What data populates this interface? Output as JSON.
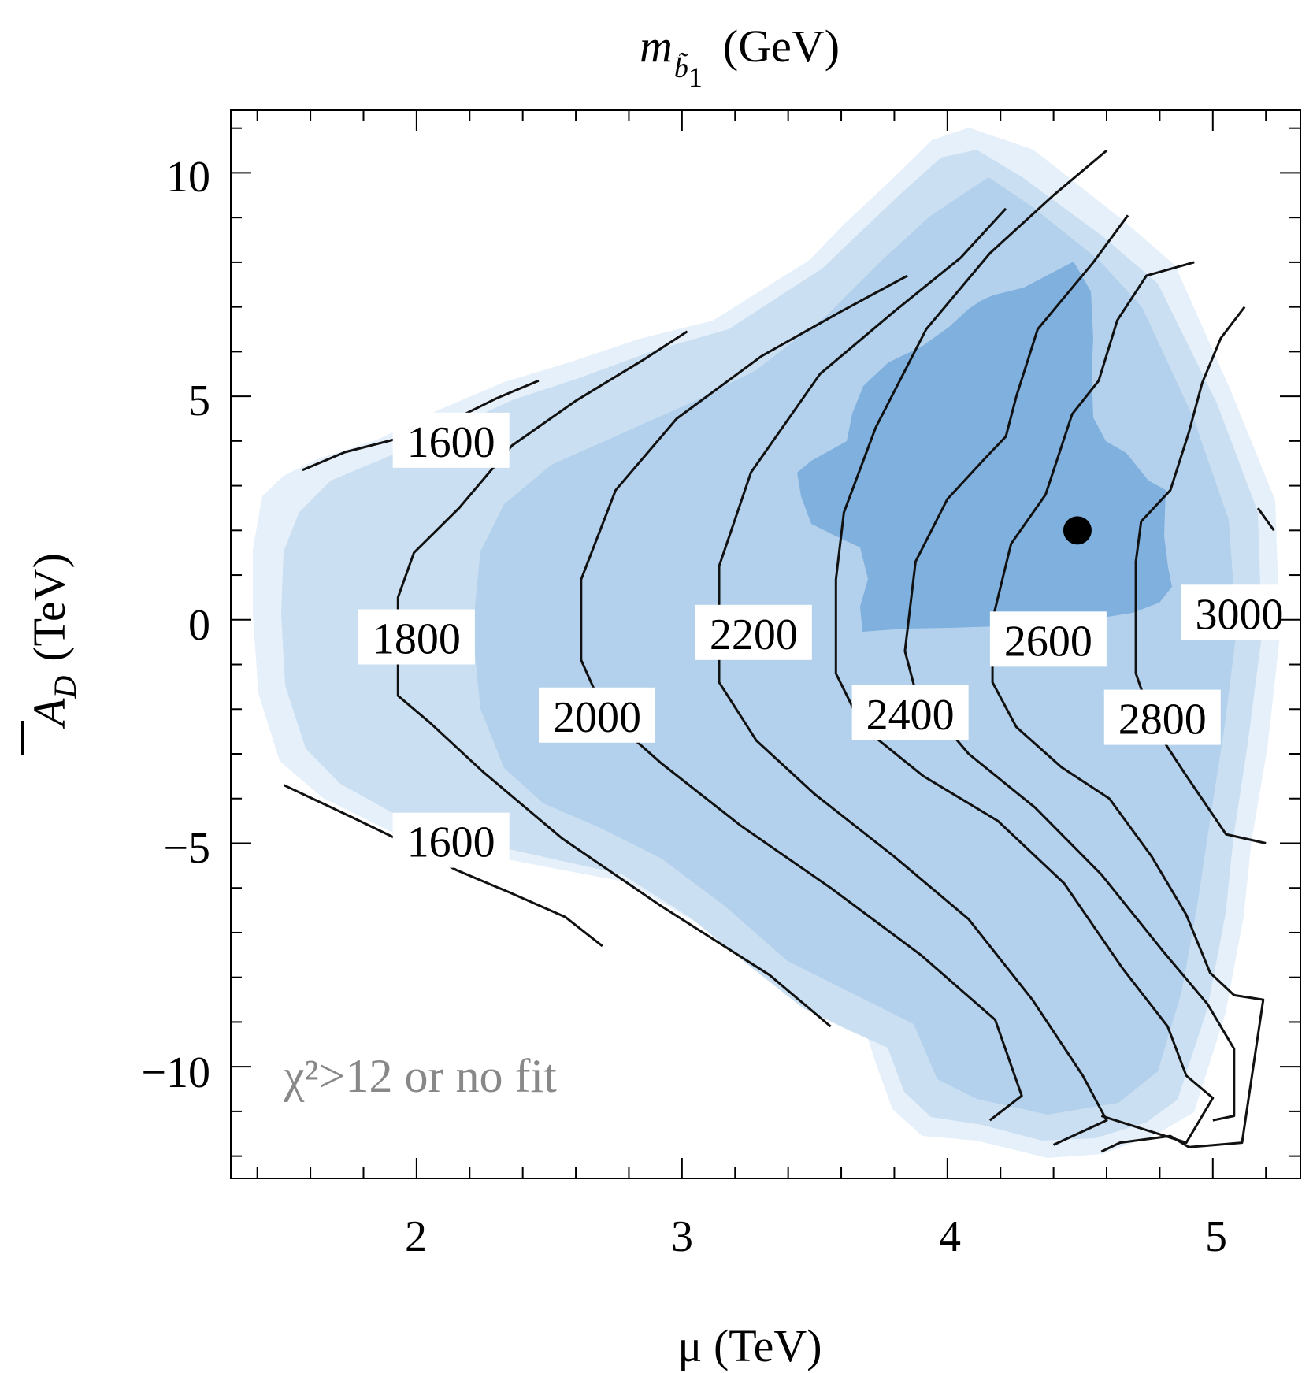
{
  "chart_data": {
    "type": "contour",
    "title": "m",
    "title_subscript": "b̃",
    "title_subscript_index": "1",
    "title_unit": "(GeV)",
    "xlabel": "μ (TeV)",
    "ylabel_symbol": "A",
    "ylabel_subscript": "D",
    "ylabel_unit": "(TeV)",
    "xlim": [
      1.3,
      5.33
    ],
    "ylim": [
      -12.5,
      11.4
    ],
    "xticks": [
      2,
      3,
      4,
      5
    ],
    "xtick_labels": [
      "2",
      "3",
      "4",
      "5"
    ],
    "yticks": [
      10,
      5,
      0,
      -5,
      -10
    ],
    "ytick_labels": [
      "10",
      "5",
      "0",
      "−5",
      "−10"
    ],
    "x_minor_step": 0.2,
    "y_minor_step": 1,
    "colors": {
      "region_light": "#e6f0fa",
      "region_mid": "#cadff1",
      "region_medium": "#b3d1ec",
      "region_dark": "#7fb0de",
      "contour": "#111111",
      "note": "#888888"
    },
    "annotation": "χ²>12 or no fit",
    "best_fit_point": {
      "x": 4.49,
      "y": 2.0
    },
    "contour_levels": [
      {
        "level": 1600,
        "label": "1600",
        "label_at": {
          "x": 2.13,
          "y": 4.0
        },
        "lines": [
          [
            [
              1.57,
              3.35
            ],
            [
              1.73,
              3.75
            ],
            [
              1.96,
              4.1
            ],
            [
              2.13,
              4.45
            ],
            [
              2.3,
              4.95
            ],
            [
              2.46,
              5.35
            ]
          ],
          [
            [
              1.5,
              -3.7
            ],
            [
              1.75,
              -4.4
            ],
            [
              1.96,
              -5.0
            ],
            [
              2.15,
              -5.6
            ],
            [
              2.35,
              -6.1
            ],
            [
              2.56,
              -6.65
            ],
            [
              2.7,
              -7.3
            ]
          ]
        ]
      },
      {
        "level": 1800,
        "label": "1800",
        "label_at": {
          "x": 2.0,
          "y": -0.4
        },
        "lines": [
          [
            [
              3.02,
              6.45
            ],
            [
              2.85,
              5.8
            ],
            [
              2.6,
              4.9
            ],
            [
              2.36,
              3.9
            ],
            [
              2.16,
              2.5
            ],
            [
              1.99,
              1.5
            ],
            [
              1.93,
              0.5
            ],
            [
              1.93,
              -1.7
            ],
            [
              2.05,
              -2.3
            ],
            [
              2.25,
              -3.4
            ],
            [
              2.55,
              -4.9
            ],
            [
              2.92,
              -6.4
            ],
            [
              3.33,
              -7.95
            ],
            [
              3.56,
              -9.1
            ]
          ]
        ]
      },
      {
        "level": 2000,
        "label": "2000",
        "label_at": {
          "x": 2.68,
          "y": -2.15
        },
        "lines": [
          [
            [
              3.85,
              7.7
            ],
            [
              3.6,
              6.9
            ],
            [
              3.3,
              5.9
            ],
            [
              2.98,
              4.5
            ],
            [
              2.75,
              2.9
            ],
            [
              2.62,
              0.9
            ],
            [
              2.62,
              -0.9
            ],
            [
              2.71,
              -2.1
            ],
            [
              2.92,
              -3.2
            ],
            [
              3.22,
              -4.6
            ],
            [
              3.56,
              -6.0
            ],
            [
              3.9,
              -7.5
            ],
            [
              4.18,
              -8.95
            ],
            [
              4.28,
              -10.65
            ],
            [
              4.16,
              -11.2
            ]
          ]
        ]
      },
      {
        "level": 2200,
        "label": "2200",
        "label_at": {
          "x": 3.27,
          "y": -0.3
        },
        "lines": [
          [
            [
              4.22,
              9.2
            ],
            [
              4.05,
              8.1
            ],
            [
              3.8,
              6.9
            ],
            [
              3.52,
              5.5
            ],
            [
              3.26,
              3.3
            ],
            [
              3.14,
              1.2
            ],
            [
              3.14,
              -1.4
            ],
            [
              3.28,
              -2.7
            ],
            [
              3.5,
              -3.9
            ],
            [
              3.8,
              -5.3
            ],
            [
              4.08,
              -6.7
            ],
            [
              4.32,
              -8.5
            ],
            [
              4.51,
              -10.2
            ],
            [
              4.6,
              -11.2
            ],
            [
              4.4,
              -11.75
            ]
          ]
        ]
      },
      {
        "level": 2400,
        "label": "2400",
        "label_at": {
          "x": 3.86,
          "y": -2.1
        },
        "lines": [
          [
            [
              4.6,
              10.5
            ],
            [
              4.4,
              9.5
            ],
            [
              4.16,
              8.2
            ],
            [
              3.92,
              6.5
            ],
            [
              3.73,
              4.3
            ],
            [
              3.61,
              2.4
            ],
            [
              3.58,
              0.9
            ],
            [
              3.58,
              -1.2
            ],
            [
              3.68,
              -2.4
            ],
            [
              3.91,
              -3.5
            ],
            [
              4.19,
              -4.5
            ],
            [
              4.44,
              -5.9
            ],
            [
              4.66,
              -7.8
            ],
            [
              4.83,
              -9.1
            ],
            [
              4.9,
              -10.2
            ],
            [
              5.0,
              -10.7
            ],
            [
              4.9,
              -11.7
            ],
            [
              4.58,
              -11.1
            ]
          ]
        ]
      },
      {
        "level": 2600,
        "label": "2600",
        "label_at": {
          "x": 4.38,
          "y": -0.45
        },
        "lines": [
          [
            [
              4.68,
              9.05
            ],
            [
              4.55,
              8.0
            ],
            [
              4.34,
              6.5
            ],
            [
              4.26,
              5.0
            ],
            [
              4.22,
              4.1
            ],
            [
              4.14,
              3.6
            ],
            [
              4.0,
              2.7
            ],
            [
              3.88,
              1.3
            ],
            [
              3.84,
              -0.7
            ],
            [
              3.88,
              -1.6
            ],
            [
              4.08,
              -3.0
            ],
            [
              4.33,
              -4.2
            ],
            [
              4.58,
              -5.7
            ],
            [
              4.81,
              -7.4
            ],
            [
              4.98,
              -8.6
            ],
            [
              5.08,
              -9.6
            ],
            [
              5.08,
              -11.1
            ],
            [
              5.0,
              -11.2
            ]
          ]
        ]
      },
      {
        "level": 2800,
        "label": "2800",
        "label_at": {
          "x": 4.81,
          "y": -2.2
        },
        "lines": [
          [
            [
              4.93,
              8.0
            ],
            [
              4.75,
              7.7
            ],
            [
              4.64,
              6.7
            ],
            [
              4.57,
              5.35
            ],
            [
              4.47,
              4.6
            ],
            [
              4.37,
              2.8
            ],
            [
              4.24,
              1.7
            ],
            [
              4.17,
              0.0
            ],
            [
              4.17,
              -1.4
            ],
            [
              4.26,
              -2.4
            ],
            [
              4.43,
              -3.3
            ],
            [
              4.61,
              -4.0
            ],
            [
              4.77,
              -5.3
            ],
            [
              4.9,
              -6.6
            ],
            [
              4.99,
              -7.9
            ],
            [
              5.08,
              -8.4
            ],
            [
              5.19,
              -8.5
            ],
            [
              5.11,
              -11.7
            ],
            [
              4.91,
              -11.8
            ],
            [
              4.84,
              -11.55
            ],
            [
              4.65,
              -11.7
            ],
            [
              4.58,
              -11.9
            ]
          ]
        ]
      },
      {
        "level": 3000,
        "label": "3000",
        "label_at": {
          "x": 5.1,
          "y": 0.15
        },
        "lines": [
          [
            [
              5.12,
              7.0
            ],
            [
              5.03,
              6.3
            ],
            [
              4.96,
              5.3
            ],
            [
              4.91,
              4.2
            ],
            [
              4.84,
              2.9
            ],
            [
              4.73,
              2.2
            ],
            [
              4.71,
              1.3
            ],
            [
              4.71,
              -1.2
            ],
            [
              4.78,
              -2.4
            ],
            [
              4.89,
              -3.4
            ],
            [
              5.05,
              -4.8
            ],
            [
              5.2,
              -5.0
            ]
          ],
          [
            [
              5.17,
              2.5
            ],
            [
              5.23,
              2.0
            ]
          ]
        ]
      }
    ]
  }
}
